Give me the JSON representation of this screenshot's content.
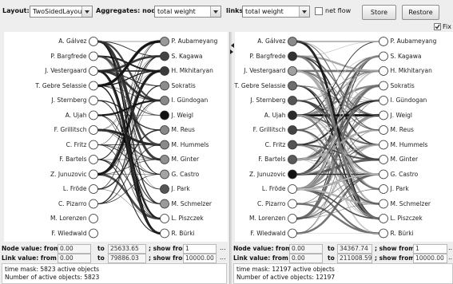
{
  "toolbar": {
    "layout_label": "Layout:",
    "layout_value": "TwoSidedLayout",
    "aggregates_label": "Aggregates: nodes:",
    "nodes_value": "total weight",
    "links_label": "links:",
    "links_value": "total weight",
    "net_flow_label": "net flow",
    "store_label": "Store",
    "restore_label": "Restore",
    "fix_label": "Fix"
  },
  "left_names": [
    "A. Gálvez",
    "P. Bargfrede",
    "J. Vestergaard",
    "T. Gebre Selassie",
    "J. Sternberg",
    "A. Ujah",
    "F. Grillitsch",
    "C. Fritz",
    "F. Bartels",
    "Z. Junuzovic",
    "L. Fröde",
    "C. Pizarro",
    "M. Lorenzen",
    "F. Wiedwald"
  ],
  "right_names": [
    "P. Aubameyang",
    "S. Kagawa",
    "H. Mkhitaryan",
    "Sokratis",
    "I. Gündogan",
    "J. Weigl",
    "M. Reus",
    "M. Hummels",
    "M. Ginter",
    "G. Castro",
    "J. Park",
    "M. Schmelzer",
    "L. Piszczek",
    "R. Bürki"
  ],
  "panel1": {
    "left_fills": [
      "#ffffff",
      "#ffffff",
      "#ffffff",
      "#ffffff",
      "#ffffff",
      "#ffffff",
      "#ffffff",
      "#ffffff",
      "#ffffff",
      "#ffffff",
      "#ffffff",
      "#ffffff",
      "#ffffff",
      "#ffffff"
    ],
    "right_fills": [
      "#999999",
      "#444444",
      "#3a3a3a",
      "#8c8c8c",
      "#888888",
      "#111111",
      "#888888",
      "#8a8a8a",
      "#8f8f8f",
      "#a3a3a3",
      "#555555",
      "#9a9a9a",
      "#ffffff",
      "#ffffff"
    ],
    "node_value_label": "Node value: from",
    "node_from": "0.00",
    "to_label": "to",
    "node_to": "25633.65",
    "show_from_label": "; show from",
    "node_show_from": "1",
    "link_value_label": "Link value: from",
    "link_from": "0.00",
    "link_to": "79886.03",
    "link_show_from": "10000.00",
    "status_line1": "time mask: 5823 active objects",
    "status_line2": "Number of active objects: 5823"
  },
  "panel2": {
    "left_fills": [
      "#8a8a8a",
      "#333333",
      "#a0a0a0",
      "#6e6e6e",
      "#555555",
      "#2a2a2a",
      "#444444",
      "#555555",
      "#5a5a5a",
      "#111111",
      "#ffffff",
      "#ffffff",
      "#ffffff",
      "#ffffff"
    ],
    "right_fills": [
      "#ffffff",
      "#ffffff",
      "#ffffff",
      "#ffffff",
      "#ffffff",
      "#ffffff",
      "#ffffff",
      "#ffffff",
      "#ffffff",
      "#ffffff",
      "#ffffff",
      "#ffffff",
      "#ffffff",
      "#ffffff"
    ],
    "node_value_label": "Node value: from",
    "node_from": "0.00",
    "to_label": "to",
    "node_to": "34367.74",
    "show_from_label": "; show from",
    "node_show_from": "1",
    "link_value_label": "Link value: from",
    "link_from": "0.00",
    "link_to": "211008.59",
    "link_show_from": "10000.00",
    "status_line1": "time mask: 12197 active objects",
    "status_line2": "Number of active objects: 12197"
  },
  "ellipsis": "..."
}
